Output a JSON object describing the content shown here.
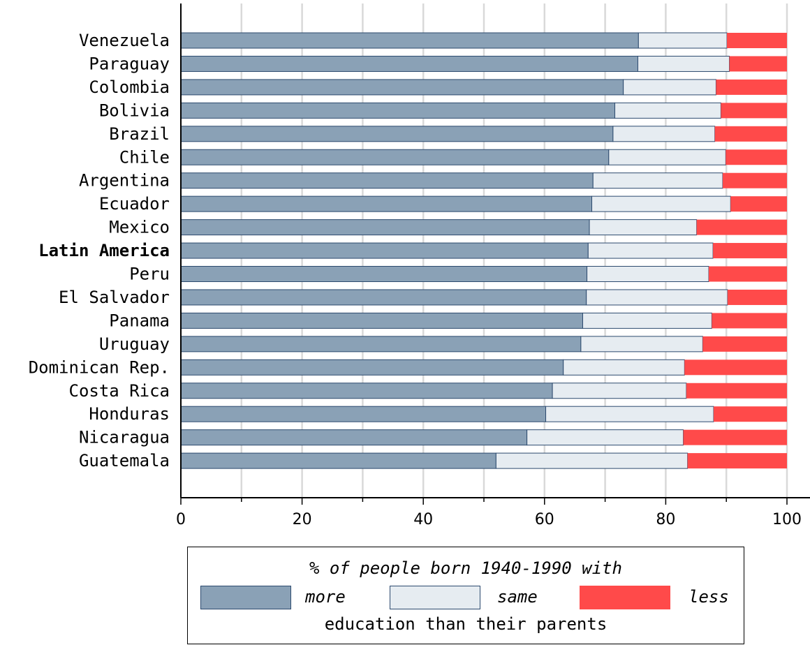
{
  "chart_data": {
    "type": "bar",
    "orientation": "horizontal",
    "stacked": true,
    "categories": [
      "Venezuela",
      "Paraguay",
      "Colombia",
      "Bolivia",
      "Brazil",
      "Chile",
      "Argentina",
      "Ecuador",
      "Mexico",
      "Latin America",
      "Peru",
      "El Salvador",
      "Panama",
      "Uruguay",
      "Dominican Rep.",
      "Costa Rica",
      "Honduras",
      "Nicaragua",
      "Guatemala"
    ],
    "highlight_category": "Latin America",
    "series": [
      {
        "name": "more",
        "color": "#8aa1b6",
        "values": [
          75.5,
          75.4,
          73,
          71.6,
          71.3,
          70.6,
          68,
          67.8,
          67.4,
          67.2,
          67,
          66.9,
          66.3,
          66,
          63.1,
          61.3,
          60.2,
          57.1,
          52
        ]
      },
      {
        "name": "same",
        "color": "#e6ecf1",
        "values": [
          14.6,
          15.1,
          15.3,
          17.5,
          16.8,
          19.3,
          21.4,
          22.9,
          17.7,
          20.6,
          20.1,
          23.3,
          21.3,
          20.1,
          20,
          22.1,
          27.7,
          25.8,
          31.6
        ]
      },
      {
        "name": "less",
        "color": "#ff4a4a",
        "values": [
          9.9,
          9.5,
          11.7,
          10.9,
          11.9,
          10.1,
          10.6,
          9.3,
          14.9,
          12.2,
          12.9,
          9.8,
          12.4,
          13.9,
          16.9,
          16.6,
          12.1,
          17.1,
          16.4
        ]
      }
    ],
    "xlim": [
      0,
      100
    ],
    "xticks": [
      "0",
      "20",
      "40",
      "60",
      "80",
      "100"
    ],
    "grid": true,
    "xlabel": "",
    "ylabel": "",
    "legend": {
      "placement": "bottom",
      "title": "% of people born 1940-1990 with",
      "footer": "education than their parents",
      "labels": [
        "more",
        "same",
        "less"
      ]
    }
  }
}
